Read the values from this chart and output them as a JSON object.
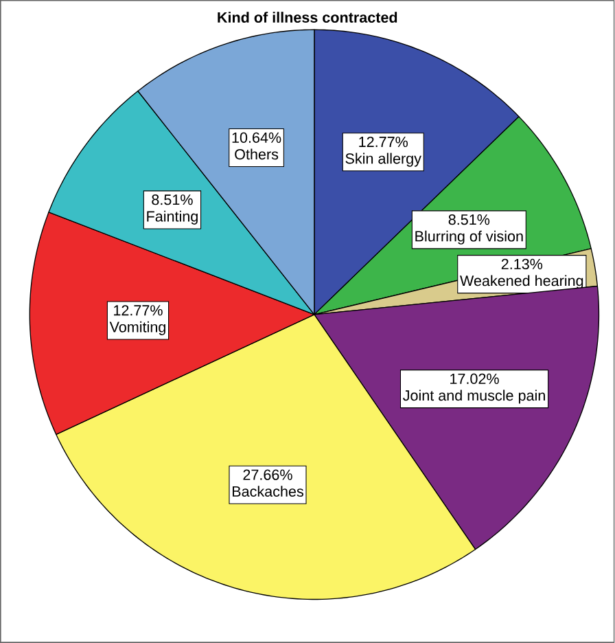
{
  "chart_data": {
    "type": "pie",
    "title": "Kind of illness contracted",
    "categories": [
      "Skin allergy",
      "Blurring of vision",
      "Weakened hearing",
      "Joint and muscle pain",
      "Backaches",
      "Vomiting",
      "Fainting",
      "Others"
    ],
    "values": [
      12.77,
      8.51,
      2.13,
      17.02,
      27.66,
      12.77,
      8.51,
      10.64
    ],
    "value_labels": [
      "12.77%",
      "8.51%",
      "2.13%",
      "17.02%",
      "27.66%",
      "12.77%",
      "8.51%",
      "10.64%"
    ],
    "colors": [
      "#3b4fa8",
      "#3db54a",
      "#d9cb8c",
      "#7a2a83",
      "#fbf466",
      "#ec2a2c",
      "#3bbec5",
      "#7ba7d7"
    ]
  }
}
